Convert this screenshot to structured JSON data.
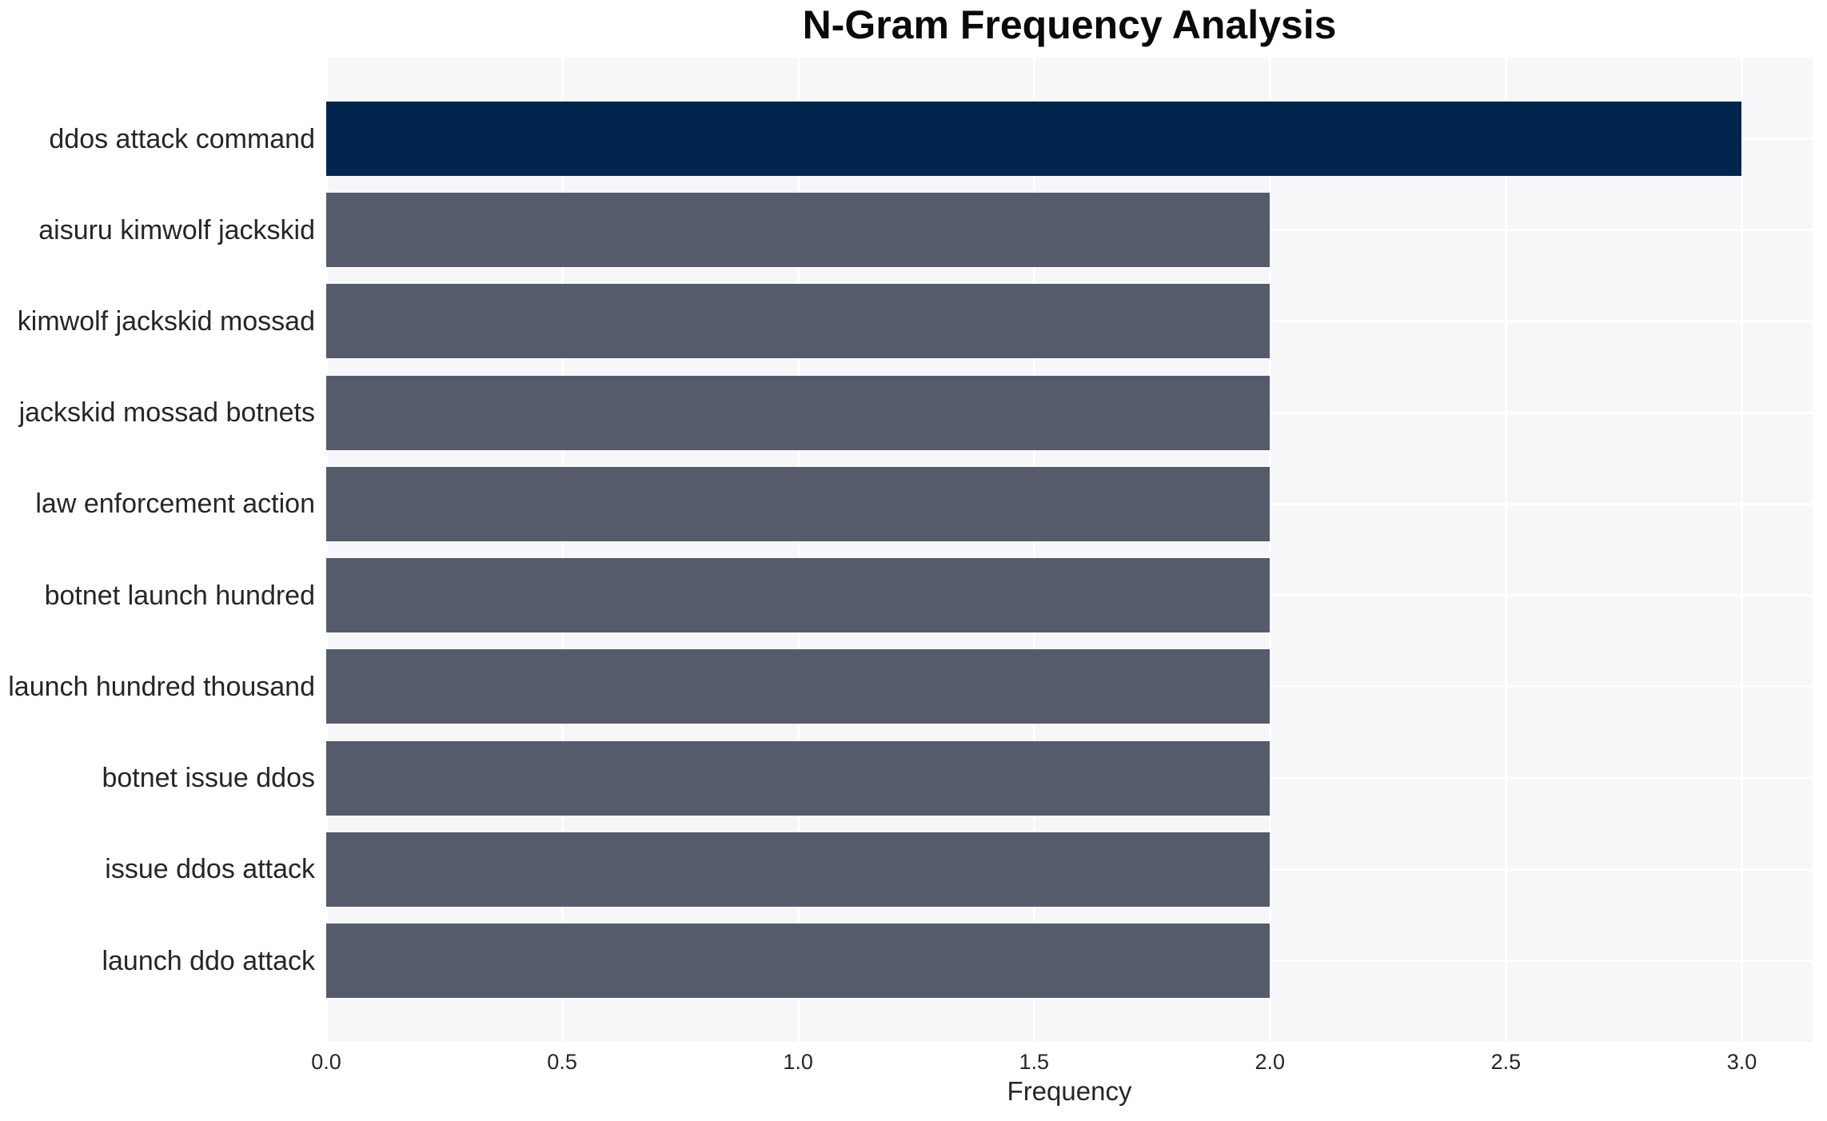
{
  "chart": {
    "title": "N-Gram Frequency Analysis",
    "xlabel": "Frequency"
  },
  "chart_data": {
    "type": "bar",
    "orientation": "horizontal",
    "title": "N-Gram Frequency Analysis",
    "xlabel": "Frequency",
    "ylabel": "",
    "categories": [
      "ddos attack command",
      "aisuru kimwolf jackskid",
      "kimwolf jackskid mossad",
      "jackskid mossad botnets",
      "law enforcement action",
      "botnet launch hundred",
      "launch hundred thousand",
      "botnet issue ddos",
      "issue ddos attack",
      "launch ddo attack"
    ],
    "values": [
      3,
      2,
      2,
      2,
      2,
      2,
      2,
      2,
      2,
      2
    ],
    "xlim": [
      0,
      3.15
    ],
    "xticks": [
      0.0,
      0.5,
      1.0,
      1.5,
      2.0,
      2.5,
      3.0
    ],
    "xtick_labels": [
      "0.0",
      "0.5",
      "1.0",
      "1.5",
      "2.0",
      "2.5",
      "3.0"
    ],
    "grid": true,
    "legend": false,
    "colors": {
      "bar_highlight": "#02254e",
      "bar_default": "#565b6c",
      "per_bar": [
        "#02254e",
        "#565b6c",
        "#565b6c",
        "#565b6c",
        "#565b6c",
        "#565b6c",
        "#565b6c",
        "#565b6c",
        "#565b6c",
        "#565b6c"
      ],
      "plot_background": "#f7f7f9",
      "gridline": "#ffffff",
      "tick_text": "#262626",
      "title_text": "#0a0a0a"
    }
  }
}
